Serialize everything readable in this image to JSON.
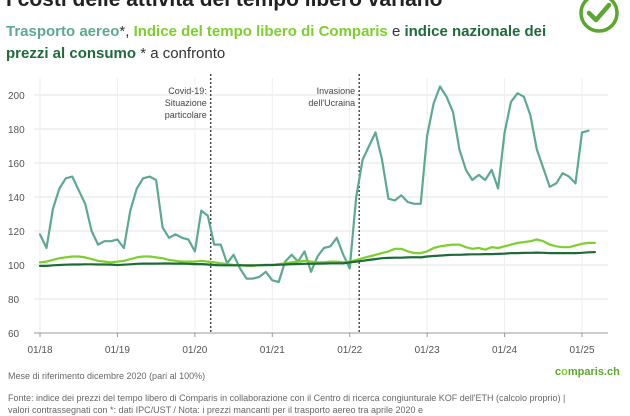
{
  "header": {
    "title": "I costi delle attività del tempo libero variano",
    "subtitle_airfare": "Trasporto aereo",
    "subtitle_sep1": "*, ",
    "subtitle_comparis": "Indice del tempo libero di Comparis",
    "subtitle_sep2": " e ",
    "subtitle_cpi": "indice nazionale dei prezzi al consumo",
    "subtitle_tail": " * a confronto"
  },
  "footer": {
    "note": "Mese di riferimento dicembre 2020 (pari al 100%)",
    "source": "Fonte: indice dei prezzi del tempo libero di Comparis in collaborazione con il Centro di ricerca congiunturale KOF dell'ETH (calcolo proprio) | valori contrassegnati con *: dati IPC/UST / Nota: i prezzi mancanti per il trasporto aereo tra aprile 2020 e",
    "brand_prefix": "c",
    "brand_o": "o",
    "brand_suffix": "mparis.ch"
  },
  "colors": {
    "airfare": "#5ea98b",
    "comparis": "#7ccf2c",
    "cpi": "#1f6a3b",
    "badge": "#5aa630"
  },
  "icons": {
    "badge": "check-circle-icon"
  },
  "chart_data": {
    "type": "line",
    "x": [
      "2018-01",
      "2018-02",
      "2018-03",
      "2018-04",
      "2018-05",
      "2018-06",
      "2018-07",
      "2018-08",
      "2018-09",
      "2018-10",
      "2018-11",
      "2018-12",
      "2019-01",
      "2019-02",
      "2019-03",
      "2019-04",
      "2019-05",
      "2019-06",
      "2019-07",
      "2019-08",
      "2019-09",
      "2019-10",
      "2019-11",
      "2019-12",
      "2020-01",
      "2020-02",
      "2020-03",
      "2020-04",
      "2020-05",
      "2020-06",
      "2020-07",
      "2020-08",
      "2020-09",
      "2020-10",
      "2020-11",
      "2020-12",
      "2021-01",
      "2021-02",
      "2021-03",
      "2021-04",
      "2021-05",
      "2021-06",
      "2021-07",
      "2021-08",
      "2021-09",
      "2021-10",
      "2021-11",
      "2021-12",
      "2022-01",
      "2022-02",
      "2022-03",
      "2022-04",
      "2022-05",
      "2022-06",
      "2022-07",
      "2022-08",
      "2022-09",
      "2022-10",
      "2022-11",
      "2022-12",
      "2023-01",
      "2023-02",
      "2023-03",
      "2023-04",
      "2023-05",
      "2023-06",
      "2023-07",
      "2023-08",
      "2023-09",
      "2023-10",
      "2023-11",
      "2023-12",
      "2024-01",
      "2024-02",
      "2024-03",
      "2024-04",
      "2024-05",
      "2024-06",
      "2024-07",
      "2024-08",
      "2024-09",
      "2024-10",
      "2024-11",
      "2024-12",
      "2025-01",
      "2025-02",
      "2025-03"
    ],
    "series": [
      {
        "name": "Trasporto aereo",
        "color": "#5ea98b",
        "width": 2.2,
        "values": [
          118,
          110,
          133,
          145,
          151,
          152,
          144,
          136,
          120,
          112,
          114,
          114,
          115,
          110,
          132,
          145,
          151,
          152,
          150,
          122,
          116,
          118,
          116,
          115,
          108,
          132,
          129,
          112,
          112,
          101,
          106,
          98,
          92,
          92,
          93,
          96,
          91,
          90,
          102,
          106,
          102,
          108,
          96,
          105,
          110,
          111,
          116,
          106,
          98,
          140,
          162,
          170,
          178,
          162,
          139,
          138,
          141,
          137,
          136,
          136,
          176,
          195,
          205,
          199,
          190,
          168,
          156,
          150,
          153,
          150,
          156,
          145,
          178,
          196,
          201,
          199,
          188,
          168,
          157,
          146,
          148,
          154,
          152,
          148,
          178,
          179,
          null
        ]
      },
      {
        "name": "Indice del tempo libero di Comparis",
        "color": "#7ccf2c",
        "width": 2.2,
        "values": [
          101.5,
          102,
          103,
          104,
          104.5,
          105,
          105,
          104.5,
          103.5,
          102.5,
          102,
          101.5,
          102,
          102.5,
          103.5,
          104.5,
          105,
          105,
          104.5,
          104,
          103,
          102.5,
          102,
          102,
          102,
          102.5,
          102,
          101.5,
          101,
          100.5,
          100,
          100,
          99.5,
          99.5,
          100,
          100,
          100,
          100.5,
          101,
          101.5,
          102,
          102.5,
          102,
          101.5,
          101.5,
          102,
          102,
          101.5,
          102,
          103,
          104,
          105,
          106,
          107,
          108,
          109.5,
          109.5,
          108,
          107,
          107,
          108,
          110,
          111,
          111.5,
          112,
          112,
          110.5,
          109.5,
          110,
          109,
          110.5,
          110,
          111,
          112,
          113,
          113.5,
          114,
          115,
          114,
          112,
          111,
          110.5,
          110.5,
          111.5,
          112.5,
          113,
          113
        ]
      },
      {
        "name": "indice nazionale dei prezzi al consumo",
        "color": "#1f6a3b",
        "width": 2.2,
        "values": [
          99.5,
          99.5,
          99.8,
          100,
          100.2,
          100.3,
          100.3,
          100.4,
          100.4,
          100.3,
          100.3,
          100.2,
          100,
          100.2,
          100.4,
          100.7,
          100.8,
          100.8,
          100.8,
          100.9,
          100.9,
          100.8,
          100.8,
          100.7,
          100.5,
          100.5,
          100.3,
          100,
          99.8,
          99.8,
          99.8,
          99.8,
          99.8,
          99.8,
          99.8,
          100,
          100,
          100.1,
          100.3,
          100.5,
          100.6,
          100.7,
          100.7,
          100.8,
          100.9,
          101,
          101,
          101,
          101.5,
          102,
          102.5,
          103,
          103.5,
          104,
          104.2,
          104.3,
          104.3,
          104.5,
          104.6,
          104.5,
          105,
          105.3,
          105.5,
          105.8,
          106,
          106,
          106.2,
          106.3,
          106.3,
          106.4,
          106.4,
          106.5,
          106.7,
          107,
          107,
          107.1,
          107.2,
          107.3,
          107.2,
          107,
          107,
          107,
          107,
          107,
          107.2,
          107.5,
          107.6
        ]
      }
    ],
    "ylim": [
      60,
      210
    ],
    "yticks": [
      60,
      80,
      100,
      120,
      140,
      160,
      180,
      200
    ],
    "xtick_labels": [
      {
        "label": "01/18",
        "date": "2018-01"
      },
      {
        "label": "01/19",
        "date": "2019-01"
      },
      {
        "label": "01/20",
        "date": "2020-01"
      },
      {
        "label": "01/21",
        "date": "2021-01"
      },
      {
        "label": "01/22",
        "date": "2022-01"
      },
      {
        "label": "01/23",
        "date": "2023-01"
      },
      {
        "label": "01/24",
        "date": "2024-01"
      },
      {
        "label": "01/25",
        "date": "2025-01"
      }
    ],
    "grid": true,
    "annotations": [
      {
        "date": "2020-03",
        "lines": [
          "Covid-19:",
          "Situazione",
          "particolare"
        ]
      },
      {
        "date": "2022-02",
        "lines": [
          "Invasione",
          "dell'Ucraina"
        ]
      }
    ]
  }
}
